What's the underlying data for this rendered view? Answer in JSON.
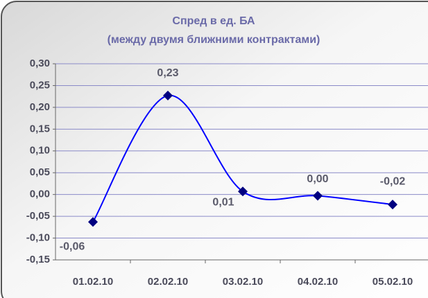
{
  "chart_data": {
    "type": "line",
    "title": "Спред в ед. БА",
    "subtitle": "(между двумя ближними контрактами)",
    "categories": [
      "01.02.10",
      "02.02.10",
      "03.02.10",
      "04.02.10",
      "05.02.10"
    ],
    "series": [
      {
        "name": "Спред",
        "color": "#0000ff",
        "marker_color": "#000080",
        "values": [
          -0.063,
          0.227,
          0.007,
          -0.003,
          -0.023
        ],
        "value_labels": [
          "-0,06",
          "0,23",
          "0,01",
          "0,00",
          "-0,02"
        ]
      }
    ],
    "smooth": true,
    "ylim": [
      -0.15,
      0.3
    ],
    "yticks": [
      {
        "value": -0.15,
        "label": "-0,15"
      },
      {
        "value": -0.1,
        "label": "-0,10"
      },
      {
        "value": -0.05,
        "label": "-0,05"
      },
      {
        "value": 0.0,
        "label": "0,00"
      },
      {
        "value": 0.05,
        "label": "0,05"
      },
      {
        "value": 0.1,
        "label": "0,10"
      },
      {
        "value": 0.15,
        "label": "0,15"
      },
      {
        "value": 0.2,
        "label": "0,20"
      },
      {
        "value": 0.25,
        "label": "0,25"
      },
      {
        "value": 0.3,
        "label": "0,30"
      }
    ],
    "grid": true
  }
}
